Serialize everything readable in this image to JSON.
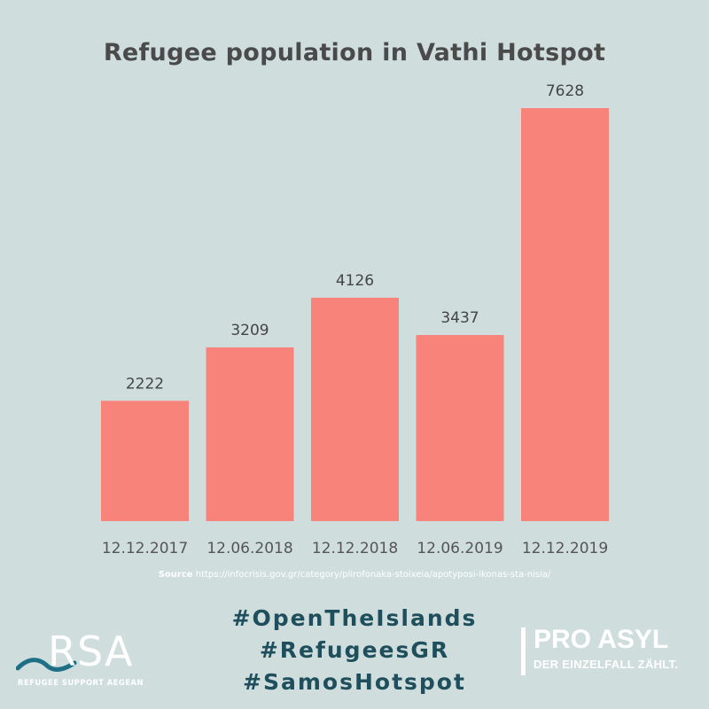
{
  "chart_data": {
    "type": "bar",
    "title": "Refugee population in Vathi Hotspot",
    "categories": [
      "12.12.2017",
      "12.06.2018",
      "12.12.2018",
      "12.06.2019",
      "12.12.2019"
    ],
    "values": [
      2222,
      3209,
      4126,
      3437,
      7628
    ],
    "ylim": [
      0,
      7628
    ],
    "grid": false,
    "bar_color": "#f7837a"
  },
  "source": {
    "label": "Source",
    "url": "https://infocrisis.gov.gr/category/plirofonaka-stoixeia/apotyposi-ikonas-sta-nisia/"
  },
  "hashtags": [
    "#OpenTheIslands",
    "#RefugeesGR",
    "#SamosHotspot"
  ],
  "logos": {
    "rsa": {
      "name": "RSA",
      "subtitle": "REFUGEE SUPPORT AEGEAN"
    },
    "proasyl": {
      "name": "PRO ASYL",
      "subtitle": "DER EINZELFALL ZÄHLT."
    }
  },
  "colors": {
    "background": "#cfdedd",
    "bar": "#f7837a",
    "hashtag": "#1f4e5c"
  }
}
